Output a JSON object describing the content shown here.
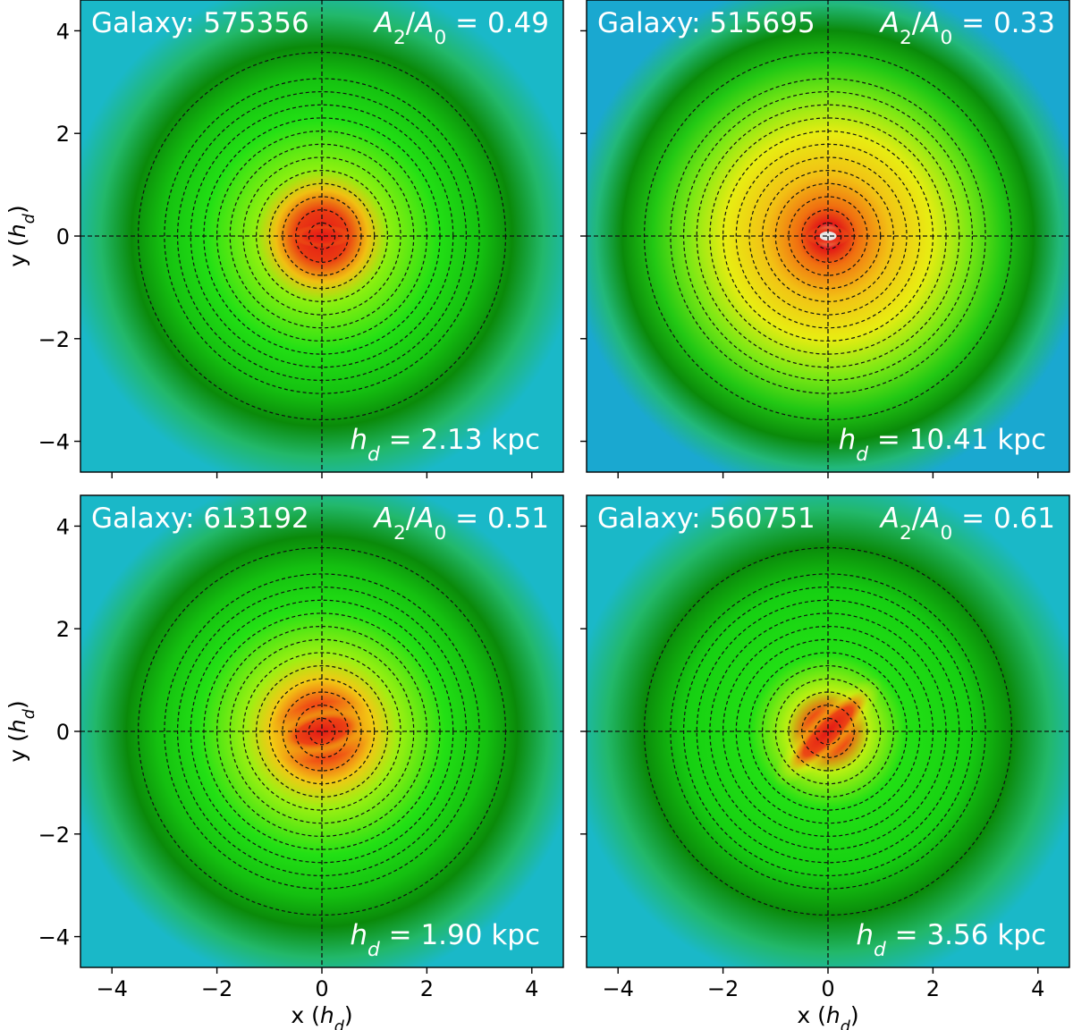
{
  "chart_data": [
    {
      "type": "heatmap",
      "galaxy_label": "Galaxy: 575356",
      "ratio_label": "A₂/A₀ = 0.49",
      "ratio_symbol": "A2/A0",
      "ratio_value": 0.49,
      "scale_label": "h_d = 2.13 kpc",
      "scale_value_kpc": 2.13,
      "xlabel": "",
      "ylabel": "y (h_d)",
      "xlim": [
        -4.6,
        4.6
      ],
      "ylim": [
        -4.6,
        4.6
      ],
      "xticks": [
        -4,
        -2,
        0,
        2,
        4
      ],
      "yticks": [
        -4,
        -2,
        0,
        2,
        4
      ],
      "contour_radii": [
        0.25,
        0.5,
        0.75,
        1.0,
        1.25,
        1.5,
        1.75,
        2.0,
        2.25,
        2.5,
        2.75,
        3.0,
        3.5
      ],
      "image_description": "hexbin surface density map, red core elongated along x, falling to green disk and cyan-blue background"
    },
    {
      "type": "heatmap",
      "galaxy_label": "Galaxy: 515695",
      "ratio_label": "A₂/A₀ = 0.33",
      "ratio_symbol": "A2/A0",
      "ratio_value": 0.33,
      "scale_label": "h_d = 10.41 kpc",
      "scale_value_kpc": 10.41,
      "xlabel": "",
      "ylabel": "",
      "xlim": [
        -4.6,
        4.6
      ],
      "ylim": [
        -4.6,
        4.6
      ],
      "xticks": [
        -4,
        -2,
        0,
        2,
        4
      ],
      "yticks": [
        -4,
        -2,
        0,
        2,
        4
      ],
      "contour_radii": [
        0.25,
        0.5,
        0.75,
        1.0,
        1.25,
        1.5,
        1.75,
        2.0,
        2.25,
        2.5,
        2.75,
        3.0,
        3.5
      ],
      "image_description": "hexbin surface density map, white-red nucleus, broad yellow-orange disk, green outskirts"
    },
    {
      "type": "heatmap",
      "galaxy_label": "Galaxy: 613192",
      "ratio_label": "A₂/A₀ = 0.51",
      "ratio_symbol": "A2/A0",
      "ratio_value": 0.51,
      "scale_label": "h_d = 1.90 kpc",
      "scale_value_kpc": 1.9,
      "xlabel": "x (h_d)",
      "ylabel": "y (h_d)",
      "xlim": [
        -4.6,
        4.6
      ],
      "ylim": [
        -4.6,
        4.6
      ],
      "xticks": [
        -4,
        -2,
        0,
        2,
        4
      ],
      "yticks": [
        -4,
        -2,
        0,
        2,
        4
      ],
      "contour_radii": [
        0.25,
        0.5,
        0.75,
        1.0,
        1.25,
        1.5,
        1.75,
        2.0,
        2.25,
        2.5,
        2.75,
        3.0,
        3.5
      ],
      "image_description": "hexbin surface density map, red core with orange bar tilted slightly, green disk"
    },
    {
      "type": "heatmap",
      "galaxy_label": "Galaxy: 560751",
      "ratio_label": "A₂/A₀ = 0.61",
      "ratio_symbol": "A2/A0",
      "ratio_value": 0.61,
      "scale_label": "h_d = 3.56 kpc",
      "scale_value_kpc": 3.56,
      "xlabel": "x (h_d)",
      "ylabel": "",
      "xlim": [
        -4.6,
        4.6
      ],
      "ylim": [
        -4.6,
        4.6
      ],
      "xticks": [
        -4,
        -2,
        0,
        2,
        4
      ],
      "yticks": [
        -4,
        -2,
        0,
        2,
        4
      ],
      "contour_radii": [
        0.25,
        0.5,
        0.75,
        1.0,
        1.25,
        1.5,
        1.75,
        2.0,
        2.25,
        2.5,
        2.75,
        3.0,
        3.5
      ],
      "image_description": "hexbin surface density map, red core with yellow bar along the diagonal, green disk"
    }
  ],
  "colors": {
    "background_blue": "#0a3fe0",
    "cyan": "#1ab8c8",
    "green_dark": "#0a8a0a",
    "green_bright": "#22e014",
    "yellow": "#f2ec10",
    "orange": "#f08a10",
    "red": "#e21616",
    "white_core": "#e8e8e8"
  }
}
